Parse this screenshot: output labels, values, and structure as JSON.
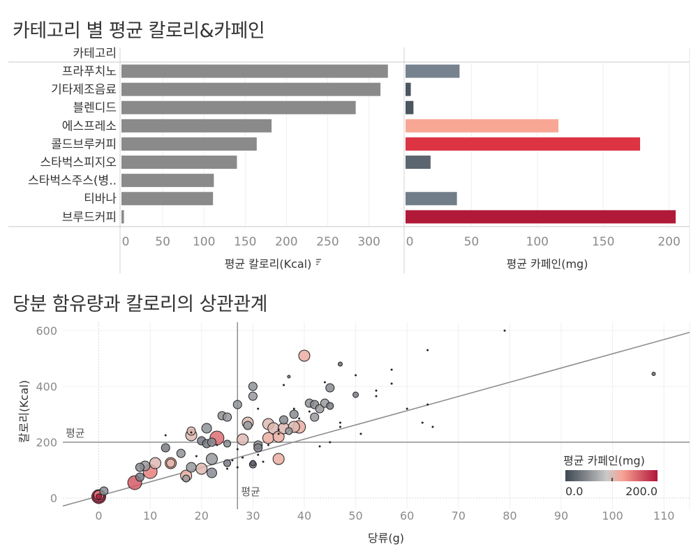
{
  "titles": {
    "top": "카테고리 별 평균 칼로리&카페인",
    "bottom": "당분 함유량과 칼로리의 상관관계"
  },
  "chart_data": [
    {
      "type": "bar",
      "orientation": "horizontal",
      "row_header": "카테고리",
      "categories": [
        "프라푸치노",
        "기타제조음료",
        "블렌디드",
        "에스프레소",
        "콜드브루커피",
        "스타벅스피지오",
        "스타벅스주스(병..",
        "티바나",
        "브루드커피"
      ],
      "panels": [
        {
          "name": "평균 칼로리(Kcal)",
          "xlabel": "평균 칼로리(Kcal)",
          "sort_icon": "sort-descending-icon",
          "xlim": [
            0,
            330
          ],
          "ticks": [
            0,
            50,
            100,
            150,
            200,
            250,
            300
          ],
          "values": [
            323,
            314,
            284,
            182,
            164,
            140,
            112,
            111,
            3
          ],
          "color": "#8a8a8a"
        },
        {
          "name": "평균 카페인(mg)",
          "xlabel": "평균 카페인(mg)",
          "xlim": [
            0,
            205
          ],
          "ticks": [
            0,
            50,
            100,
            150,
            200
          ],
          "values": [
            41,
            4,
            6,
            116,
            178,
            19,
            0,
            39,
            205
          ],
          "colors": [
            "#76838e",
            "#4c5660",
            "#4c5660",
            "#f9a795",
            "#dc3443",
            "#5c6670",
            "#ffffff",
            "#717d88",
            "#b01a38"
          ]
        }
      ]
    },
    {
      "type": "scatter",
      "xlabel": "당류(g)",
      "ylabel": "칼로리(Kcal)",
      "xlim": [
        -7,
        115
      ],
      "ylim": [
        -40,
        630
      ],
      "xticks": [
        0,
        10,
        20,
        30,
        40,
        50,
        60,
        70,
        80,
        90,
        100,
        110
      ],
      "yticks": [
        0,
        200,
        400,
        600
      ],
      "reference_lines": {
        "x_mean": 27,
        "y_mean": 200,
        "x_label": "평균",
        "y_label": "평균"
      },
      "trend_line": {
        "slope": 5.1,
        "intercept": 7
      },
      "color_legend": {
        "title": "평균 카페인(mg)",
        "min_label": "0.0",
        "max_label": "200.0",
        "stops": [
          "#3d4651",
          "#c9c9c9",
          "#f8a293",
          "#b0143a"
        ]
      },
      "points": [
        {
          "x": 0,
          "y": 5,
          "c": 210,
          "r": 10
        },
        {
          "x": 0,
          "y": 5,
          "c": 190,
          "r": 8
        },
        {
          "x": 0,
          "y": 10,
          "c": 150,
          "r": 7
        },
        {
          "x": 0,
          "y": 5,
          "c": 230,
          "r": 4
        },
        {
          "x": 1,
          "y": 25,
          "c": 50,
          "r": 6
        },
        {
          "x": 7,
          "y": 55,
          "c": 170,
          "r": 10
        },
        {
          "x": 8,
          "y": 75,
          "c": 40,
          "r": 6
        },
        {
          "x": 8,
          "y": 110,
          "c": 50,
          "r": 6
        },
        {
          "x": 9,
          "y": 115,
          "c": 60,
          "r": 7
        },
        {
          "x": 10,
          "y": 95,
          "c": 150,
          "r": 10
        },
        {
          "x": 11,
          "y": 125,
          "c": 110,
          "r": 8
        },
        {
          "x": 13,
          "y": 180,
          "c": 40,
          "r": 6
        },
        {
          "x": 13,
          "y": 225,
          "c": 30,
          "r": 1.5
        },
        {
          "x": 14,
          "y": 125,
          "c": 130,
          "r": 8
        },
        {
          "x": 14,
          "y": 125,
          "c": 110,
          "r": 6
        },
        {
          "x": 16,
          "y": 160,
          "c": 55,
          "r": 6
        },
        {
          "x": 17,
          "y": 70,
          "c": 60,
          "r": 5
        },
        {
          "x": 17,
          "y": 80,
          "c": 120,
          "r": 8
        },
        {
          "x": 18,
          "y": 225,
          "c": 110,
          "r": 8
        },
        {
          "x": 18,
          "y": 240,
          "c": 110,
          "r": 6
        },
        {
          "x": 18,
          "y": 110,
          "c": 60,
          "r": 7
        },
        {
          "x": 18,
          "y": 235,
          "c": 30,
          "r": 1.5
        },
        {
          "x": 19,
          "y": 150,
          "c": 30,
          "r": 1.5
        },
        {
          "x": 20,
          "y": 105,
          "c": 110,
          "r": 8
        },
        {
          "x": 20,
          "y": 205,
          "c": 40,
          "r": 6
        },
        {
          "x": 21,
          "y": 195,
          "c": 40,
          "r": 6
        },
        {
          "x": 21,
          "y": 250,
          "c": 55,
          "r": 7
        },
        {
          "x": 22,
          "y": 90,
          "c": 50,
          "r": 7
        },
        {
          "x": 22,
          "y": 140,
          "c": 60,
          "r": 8
        },
        {
          "x": 22,
          "y": 200,
          "c": 50,
          "r": 6
        },
        {
          "x": 23,
          "y": 215,
          "c": 160,
          "r": 10
        },
        {
          "x": 23,
          "y": 190,
          "c": 30,
          "r": 1.5
        },
        {
          "x": 24,
          "y": 295,
          "c": 55,
          "r": 6
        },
        {
          "x": 25,
          "y": 290,
          "c": 60,
          "r": 6
        },
        {
          "x": 25,
          "y": 195,
          "c": 50,
          "r": 5
        },
        {
          "x": 25,
          "y": 105,
          "c": 30,
          "r": 1.5
        },
        {
          "x": 25,
          "y": 125,
          "c": 40,
          "r": 5
        },
        {
          "x": 26,
          "y": 135,
          "c": 30,
          "r": 1.5
        },
        {
          "x": 27,
          "y": 110,
          "c": 30,
          "r": 1.5
        },
        {
          "x": 27,
          "y": 335,
          "c": 55,
          "r": 6
        },
        {
          "x": 27,
          "y": 175,
          "c": 30,
          "r": 1.5
        },
        {
          "x": 28,
          "y": 210,
          "c": 110,
          "r": 8
        },
        {
          "x": 28,
          "y": 145,
          "c": 30,
          "r": 1.5
        },
        {
          "x": 29,
          "y": 270,
          "c": 110,
          "r": 8
        },
        {
          "x": 29,
          "y": 260,
          "c": 60,
          "r": 6
        },
        {
          "x": 30,
          "y": 400,
          "c": 55,
          "r": 6
        },
        {
          "x": 30,
          "y": 365,
          "c": 60,
          "r": 6
        },
        {
          "x": 30,
          "y": 125,
          "c": 20,
          "r": 4
        },
        {
          "x": 30,
          "y": 120,
          "c": 40,
          "r": 5
        },
        {
          "x": 31,
          "y": 190,
          "c": 60,
          "r": 6
        },
        {
          "x": 31,
          "y": 180,
          "c": 40,
          "r": 6
        },
        {
          "x": 31,
          "y": 320,
          "c": 30,
          "r": 1.5
        },
        {
          "x": 31,
          "y": 155,
          "c": 30,
          "r": 1.5
        },
        {
          "x": 32,
          "y": 130,
          "c": 30,
          "r": 1.5
        },
        {
          "x": 33,
          "y": 265,
          "c": 110,
          "r": 8
        },
        {
          "x": 33,
          "y": 215,
          "c": 120,
          "r": 8
        },
        {
          "x": 33,
          "y": 190,
          "c": 30,
          "r": 1.5
        },
        {
          "x": 34,
          "y": 250,
          "c": 110,
          "r": 8
        },
        {
          "x": 35,
          "y": 220,
          "c": 120,
          "r": 8
        },
        {
          "x": 35,
          "y": 140,
          "c": 120,
          "r": 8
        },
        {
          "x": 35,
          "y": 230,
          "c": 30,
          "r": 1.5
        },
        {
          "x": 35,
          "y": 245,
          "c": 30,
          "r": 1.5
        },
        {
          "x": 36,
          "y": 250,
          "c": 110,
          "r": 8
        },
        {
          "x": 36,
          "y": 280,
          "c": 50,
          "r": 6
        },
        {
          "x": 36,
          "y": 405,
          "c": 30,
          "r": 1.5
        },
        {
          "x": 37,
          "y": 435,
          "c": 30,
          "r": 2
        },
        {
          "x": 37,
          "y": 240,
          "c": 60,
          "r": 5
        },
        {
          "x": 38,
          "y": 255,
          "c": 110,
          "r": 8
        },
        {
          "x": 38,
          "y": 300,
          "c": 50,
          "r": 6
        },
        {
          "x": 38,
          "y": 320,
          "c": 30,
          "r": 1.5
        },
        {
          "x": 39,
          "y": 255,
          "c": 120,
          "r": 9
        },
        {
          "x": 39,
          "y": 285,
          "c": 30,
          "r": 1.5
        },
        {
          "x": 40,
          "y": 510,
          "c": 120,
          "r": 8
        },
        {
          "x": 41,
          "y": 340,
          "c": 55,
          "r": 6
        },
        {
          "x": 41,
          "y": 310,
          "c": 30,
          "r": 1.5
        },
        {
          "x": 42,
          "y": 335,
          "c": 50,
          "r": 6
        },
        {
          "x": 42,
          "y": 290,
          "c": 60,
          "r": 6
        },
        {
          "x": 43,
          "y": 320,
          "c": 60,
          "r": 6
        },
        {
          "x": 43,
          "y": 185,
          "c": 30,
          "r": 1.5
        },
        {
          "x": 44,
          "y": 340,
          "c": 60,
          "r": 6
        },
        {
          "x": 44,
          "y": 415,
          "c": 30,
          "r": 1.5
        },
        {
          "x": 45,
          "y": 395,
          "c": 50,
          "r": 6
        },
        {
          "x": 45,
          "y": 330,
          "c": 40,
          "r": 5
        },
        {
          "x": 45,
          "y": 200,
          "c": 30,
          "r": 1.5
        },
        {
          "x": 47,
          "y": 480,
          "c": 30,
          "r": 3
        },
        {
          "x": 47,
          "y": 270,
          "c": 30,
          "r": 1.5
        },
        {
          "x": 47,
          "y": 255,
          "c": 30,
          "r": 1.5
        },
        {
          "x": 50,
          "y": 370,
          "c": 40,
          "r": 4
        },
        {
          "x": 50,
          "y": 440,
          "c": 30,
          "r": 1.5
        },
        {
          "x": 51,
          "y": 230,
          "c": 30,
          "r": 1.5
        },
        {
          "x": 54,
          "y": 385,
          "c": 30,
          "r": 1.5
        },
        {
          "x": 54,
          "y": 365,
          "c": 30,
          "r": 1.5
        },
        {
          "x": 57,
          "y": 460,
          "c": 30,
          "r": 1.5
        },
        {
          "x": 57,
          "y": 410,
          "c": 30,
          "r": 1.5
        },
        {
          "x": 60,
          "y": 320,
          "c": 30,
          "r": 1.5
        },
        {
          "x": 63,
          "y": 270,
          "c": 30,
          "r": 1.5
        },
        {
          "x": 64,
          "y": 530,
          "c": 30,
          "r": 1.5
        },
        {
          "x": 64,
          "y": 335,
          "c": 30,
          "r": 1.5
        },
        {
          "x": 65,
          "y": 255,
          "c": 30,
          "r": 1.5
        },
        {
          "x": 79,
          "y": 600,
          "c": 30,
          "r": 1.5
        },
        {
          "x": 108,
          "y": 445,
          "c": 30,
          "r": 2.5
        }
      ]
    }
  ]
}
